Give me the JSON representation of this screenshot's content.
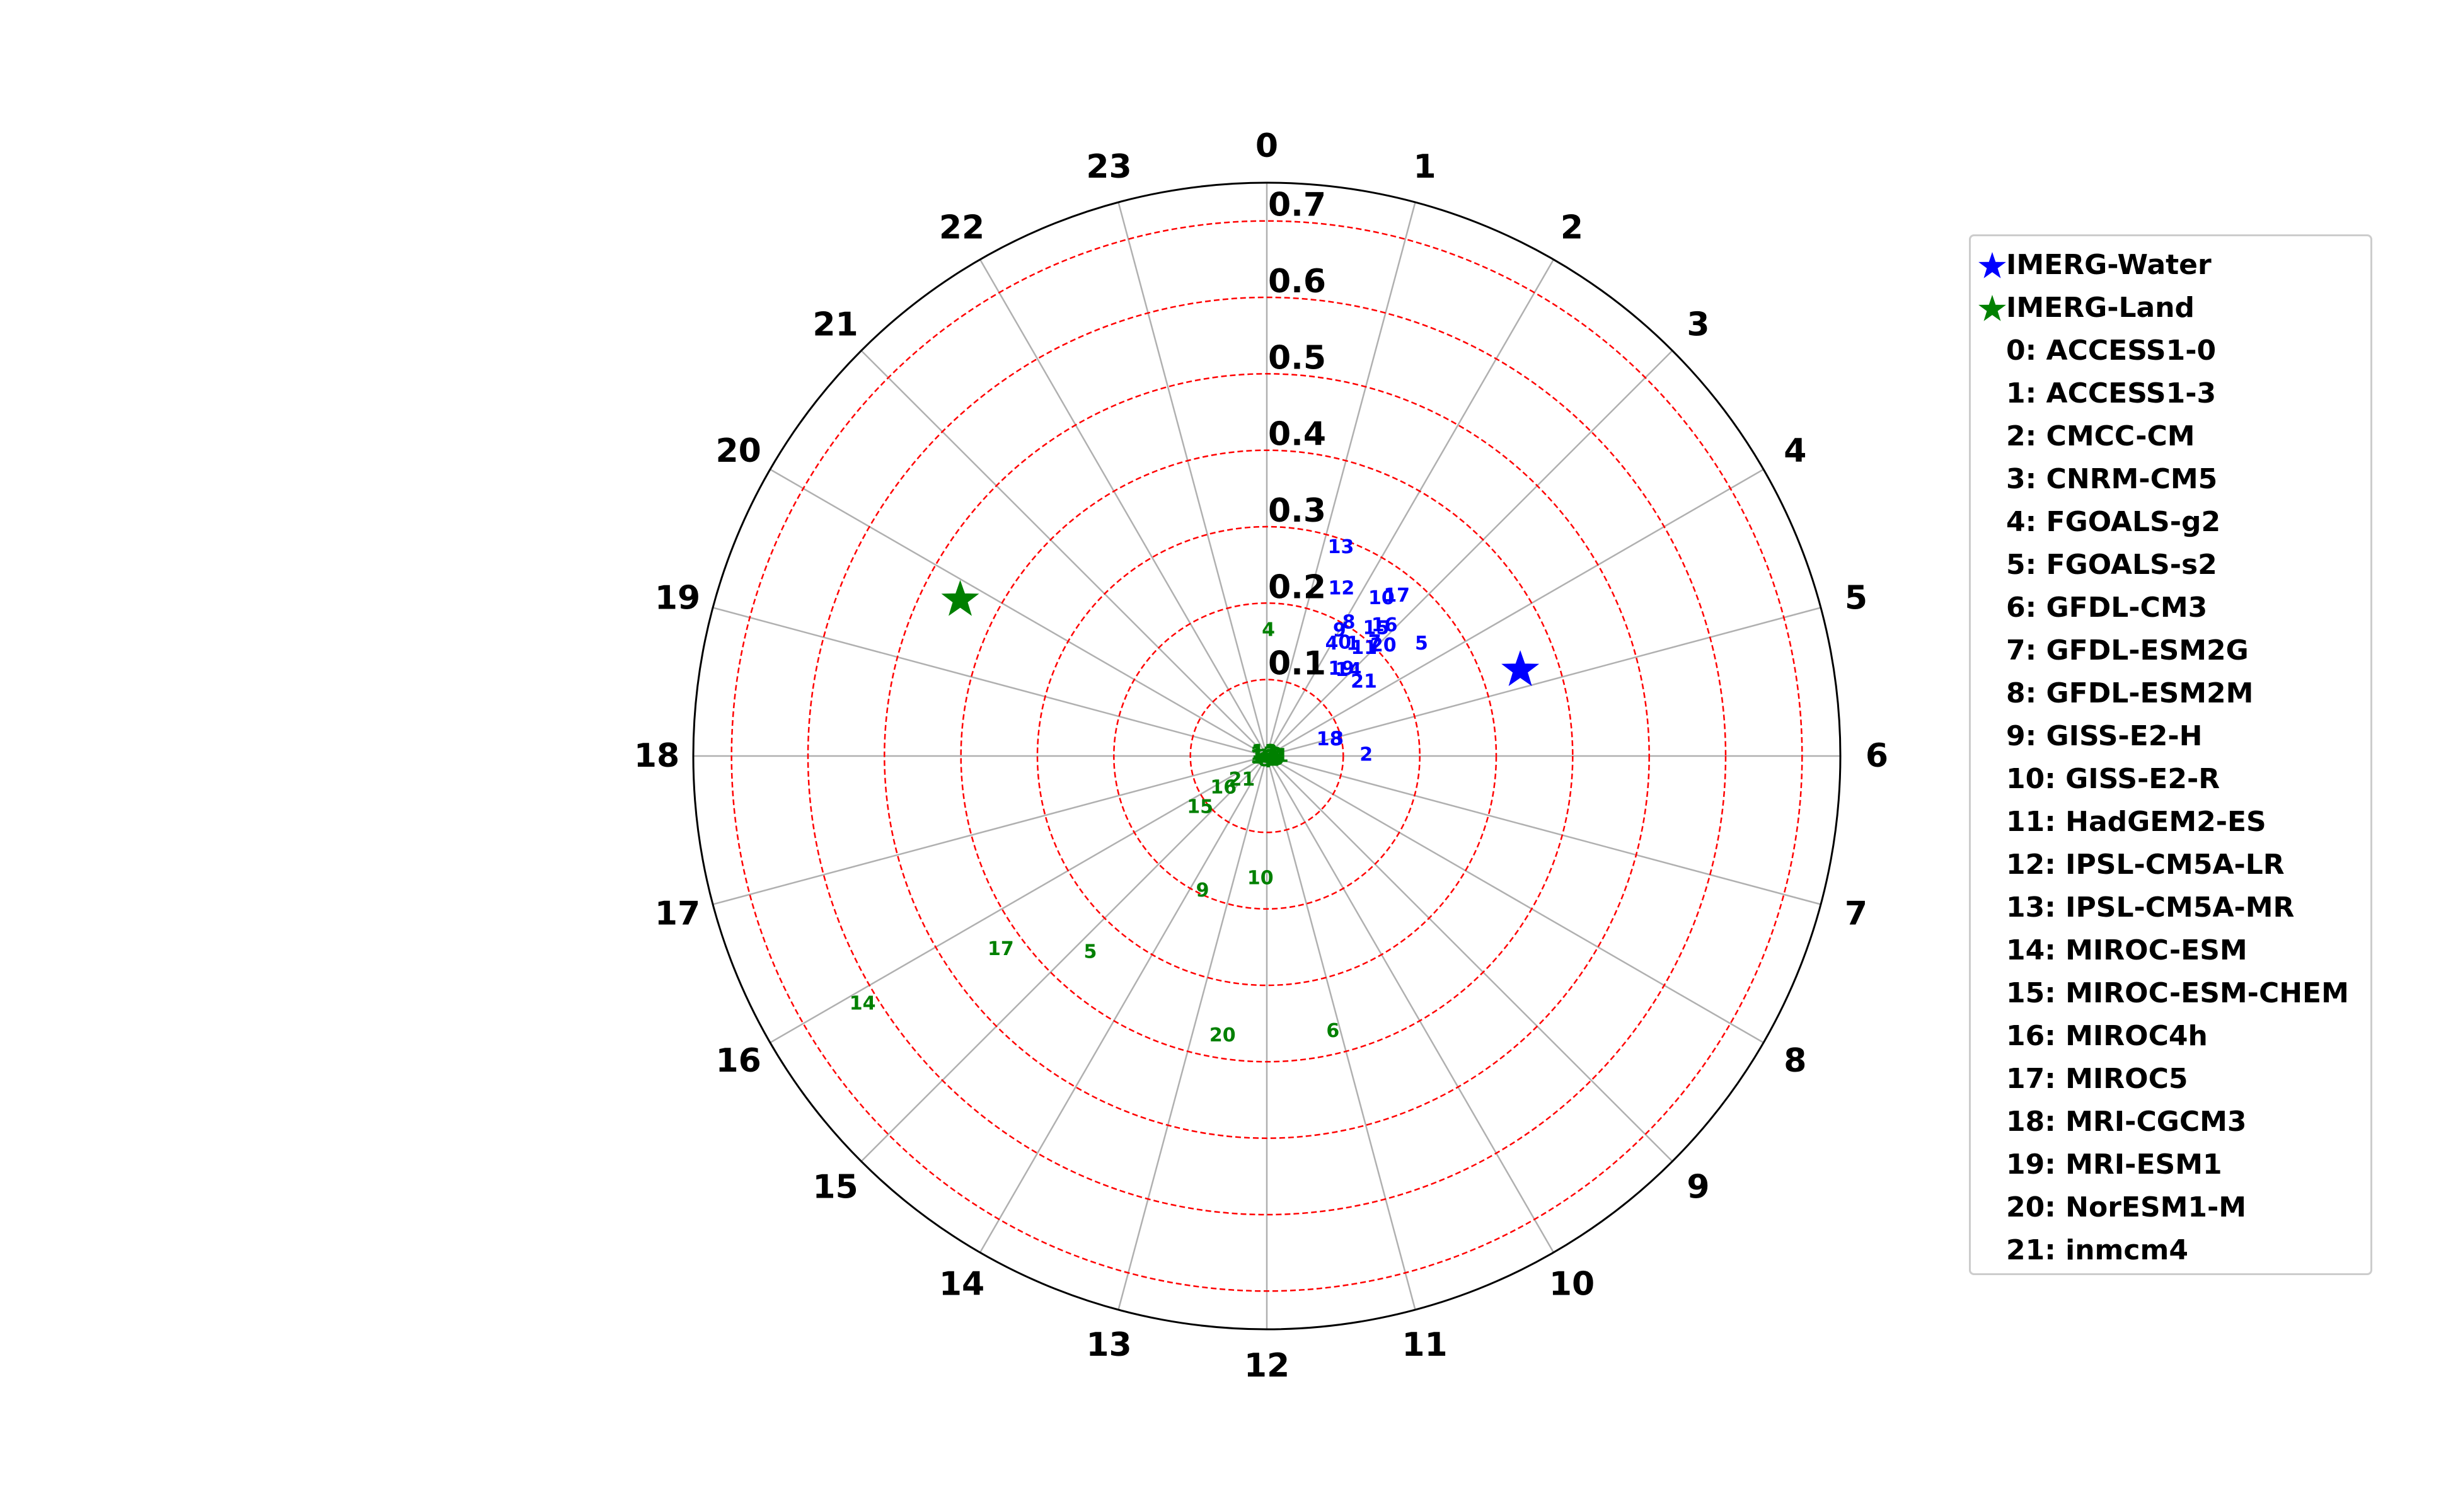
{
  "chart_data": {
    "type": "scatter",
    "projection": "polar",
    "title": "",
    "angular_axis": {
      "tick_labels": [
        "0",
        "1",
        "2",
        "3",
        "4",
        "5",
        "6",
        "7",
        "8",
        "9",
        "10",
        "11",
        "12",
        "13",
        "14",
        "15",
        "16",
        "17",
        "18",
        "19",
        "20",
        "21",
        "22",
        "23"
      ],
      "unit": "hour",
      "period": 24,
      "zero_location": "top",
      "direction": "clockwise"
    },
    "radial_axis": {
      "range": [
        0,
        0.75
      ],
      "tick_labels": [
        "0.1",
        "0.2",
        "0.3",
        "0.4",
        "0.5",
        "0.6",
        "0.7"
      ],
      "tick_values": [
        0.1,
        0.2,
        0.3,
        0.4,
        0.5,
        0.6,
        0.7
      ]
    },
    "grid": true,
    "legend": {
      "placement": "right",
      "entries": [
        {
          "marker": "star",
          "color": "#0000ff",
          "label": "IMERG-Water"
        },
        {
          "marker": "star",
          "color": "#008000",
          "label": "IMERG-Land"
        },
        {
          "label": "0: ACCESS1-0"
        },
        {
          "label": "1: ACCESS1-3"
        },
        {
          "label": "2: CMCC-CM"
        },
        {
          "label": "3: CNRM-CM5"
        },
        {
          "label": "4: FGOALS-g2"
        },
        {
          "label": "5: FGOALS-s2"
        },
        {
          "label": "6: GFDL-CM3"
        },
        {
          "label": "7: GFDL-ESM2G"
        },
        {
          "label": "8: GFDL-ESM2M"
        },
        {
          "label": "9: GISS-E2-H"
        },
        {
          "label": "10: GISS-E2-R"
        },
        {
          "label": "11: HadGEM2-ES"
        },
        {
          "label": "12: IPSL-CM5A-LR"
        },
        {
          "label": "13: IPSL-CM5A-MR"
        },
        {
          "label": "14: MIROC-ESM"
        },
        {
          "label": "15: MIROC-ESM-CHEM"
        },
        {
          "label": "16: MIROC4h"
        },
        {
          "label": "17: MIROC5"
        },
        {
          "label": "18: MRI-CGCM3"
        },
        {
          "label": "19: MRI-ESM1"
        },
        {
          "label": "20: NorESM1-M"
        },
        {
          "label": "21: inmcm4"
        }
      ]
    },
    "observations": [
      {
        "name": "IMERG-Water",
        "hour": 4.75,
        "amplitude": 0.35,
        "color": "#0000ff",
        "marker": "star"
      },
      {
        "name": "IMERG-Land",
        "hour": 19.8,
        "amplitude": 0.45,
        "color": "#008000",
        "marker": "star"
      }
    ],
    "series": [
      {
        "name": "Water",
        "color": "#0000ff",
        "points": [
          {
            "label": "13",
            "hour": 1.3,
            "amplitude": 0.29
          },
          {
            "label": "12",
            "hour": 1.6,
            "amplitude": 0.24
          },
          {
            "label": "10",
            "hour": 2.4,
            "amplitude": 0.255
          },
          {
            "label": "17",
            "hour": 2.6,
            "amplitude": 0.27
          },
          {
            "label": "15",
            "hour": 2.7,
            "amplitude": 0.22
          },
          {
            "label": "16",
            "hour": 2.8,
            "amplitude": 0.23
          },
          {
            "label": "7",
            "hour": 2.9,
            "amplitude": 0.205
          },
          {
            "label": "9",
            "hour": 2.0,
            "amplitude": 0.19
          },
          {
            "label": "8",
            "hour": 2.1,
            "amplitude": 0.205
          },
          {
            "label": "0",
            "hour": 2.3,
            "amplitude": 0.18
          },
          {
            "label": "1",
            "hour": 2.5,
            "amplitude": 0.185
          },
          {
            "label": "11",
            "hour": 2.8,
            "amplitude": 0.19
          },
          {
            "label": "4",
            "hour": 2.0,
            "amplitude": 0.17
          },
          {
            "label": "20",
            "hour": 3.1,
            "amplitude": 0.21
          },
          {
            "label": "5",
            "hour": 3.6,
            "amplitude": 0.25
          },
          {
            "label": "19",
            "hour": 2.7,
            "amplitude": 0.15
          },
          {
            "label": "14",
            "hour": 2.9,
            "amplitude": 0.155
          },
          {
            "label": "21",
            "hour": 3.5,
            "amplitude": 0.16
          },
          {
            "label": "18",
            "hour": 5.0,
            "amplitude": 0.085
          },
          {
            "label": "3",
            "hour": 5.1,
            "amplitude": 0.095
          },
          {
            "label": "2",
            "hour": 5.95,
            "amplitude": 0.13
          }
        ]
      },
      {
        "name": "Land",
        "color": "#008000",
        "points": [
          {
            "label": "4",
            "hour": 0.05,
            "amplitude": 0.165
          },
          {
            "label": "1",
            "hour": 6.0,
            "amplitude": 0.02
          },
          {
            "label": "0",
            "hour": 7.0,
            "amplitude": 0.015
          },
          {
            "label": "2",
            "hour": 8.0,
            "amplitude": 0.01
          },
          {
            "label": "3",
            "hour": 5.5,
            "amplitude": 0.012
          },
          {
            "label": "7",
            "hour": 10.0,
            "amplitude": 0.008
          },
          {
            "label": "8",
            "hour": 14.0,
            "amplitude": 0.006
          },
          {
            "label": "11",
            "hour": 16.0,
            "amplitude": 0.004
          },
          {
            "label": "12",
            "hour": 20.0,
            "amplitude": 0.005
          },
          {
            "label": "13",
            "hour": 22.0,
            "amplitude": 0.006
          },
          {
            "label": "18",
            "hour": 6.5,
            "amplitude": 0.005
          },
          {
            "label": "19",
            "hour": 17.0,
            "amplitude": 0.005
          },
          {
            "label": "21",
            "hour": 15.1,
            "amplitude": 0.045
          },
          {
            "label": "16",
            "hour": 15.6,
            "amplitude": 0.07
          },
          {
            "label": "15",
            "hour": 15.5,
            "amplitude": 0.11
          },
          {
            "label": "10",
            "hour": 12.2,
            "amplitude": 0.16
          },
          {
            "label": "9",
            "hour": 13.7,
            "amplitude": 0.195
          },
          {
            "label": "5",
            "hour": 14.8,
            "amplitude": 0.345
          },
          {
            "label": "17",
            "hour": 15.6,
            "amplitude": 0.43
          },
          {
            "label": "20",
            "hour": 12.6,
            "amplitude": 0.37
          },
          {
            "label": "6",
            "hour": 11.1,
            "amplitude": 0.37
          },
          {
            "label": "14",
            "hour": 15.9,
            "amplitude": 0.62
          }
        ]
      }
    ]
  }
}
